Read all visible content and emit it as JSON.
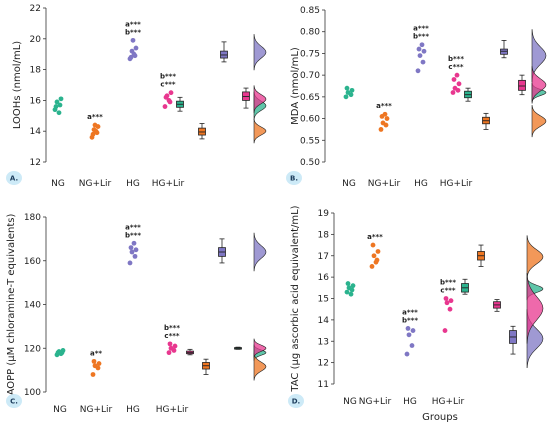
{
  "colors": {
    "NG": "#2bb38e",
    "NGLir": "#ee7622",
    "HG": "#7f77c4",
    "HGLir": "#e8378f",
    "badge": "#cdeaf7",
    "axis": "#333333"
  },
  "footer_label": "Groups",
  "chart_data": [
    {
      "id": "A",
      "panel_label": "A.",
      "type": "scatter",
      "ylabel": "LOOHs (nmol/mL)",
      "ylim": [
        12,
        22
      ],
      "yticks": [
        "12",
        "14",
        "16",
        "18",
        "20",
        "22"
      ],
      "categories": [
        "NG",
        "NG+Lir",
        "HG",
        "HG+Lir"
      ],
      "points": [
        [
          15.4,
          15.7,
          15.9,
          16.1,
          15.6,
          15.2
        ],
        [
          13.6,
          13.9,
          14.1,
          14.3,
          13.8,
          14.0,
          14.4
        ],
        [
          18.7,
          18.9,
          19.2,
          19.4,
          18.8,
          19.0,
          19.9
        ],
        [
          15.6,
          15.9,
          16.3,
          16.5,
          16.2,
          16.0
        ]
      ],
      "annotations": [
        {
          "category": "NG+Lir",
          "lines": [
            "a***"
          ]
        },
        {
          "category": "HG",
          "lines": [
            "a***",
            "b***"
          ]
        },
        {
          "category": "HG+Lir",
          "lines": [
            "b***",
            "c***"
          ]
        }
      ],
      "box_order": [
        "NG",
        "NGLir",
        "HG",
        "HGLir"
      ],
      "boxes": [
        {
          "group": "NG",
          "min": 15.3,
          "q1": 15.55,
          "median": 15.75,
          "q3": 15.95,
          "max": 16.2
        },
        {
          "group": "NGLir",
          "min": 13.5,
          "q1": 13.75,
          "median": 13.95,
          "q3": 14.2,
          "max": 14.5
        },
        {
          "group": "HG",
          "min": 18.5,
          "q1": 18.75,
          "median": 18.95,
          "q3": 19.2,
          "max": 19.8
        },
        {
          "group": "HGLir",
          "min": 15.5,
          "q1": 16.0,
          "median": 16.25,
          "q3": 16.55,
          "max": 16.8
        }
      ]
    },
    {
      "id": "B",
      "panel_label": "B.",
      "type": "scatter",
      "ylabel": "MDA (nmol/mL)",
      "ylim": [
        0.5,
        0.85
      ],
      "yticks": [
        "0.50",
        "0.55",
        "0.60",
        "0.65",
        "0.70",
        "0.75",
        "0.80",
        "0.85"
      ],
      "categories": [
        "NG",
        "NG+Lir",
        "HG",
        "HG+Lir"
      ],
      "points": [
        [
          0.65,
          0.655,
          0.66,
          0.665,
          0.67
        ],
        [
          0.575,
          0.585,
          0.59,
          0.6,
          0.605,
          0.61
        ],
        [
          0.71,
          0.73,
          0.745,
          0.755,
          0.76,
          0.77
        ],
        [
          0.66,
          0.665,
          0.67,
          0.68,
          0.69,
          0.7
        ]
      ],
      "annotations": [
        {
          "category": "NG+Lir",
          "lines": [
            "a***"
          ]
        },
        {
          "category": "HG",
          "lines": [
            "a***",
            "b***"
          ]
        },
        {
          "category": "HG+Lir",
          "lines": [
            "b***",
            "c***"
          ]
        }
      ],
      "box_order": [
        "NG",
        "NGLir",
        "HG",
        "HGLir"
      ],
      "boxes": [
        {
          "group": "NG",
          "min": 0.64,
          "q1": 0.648,
          "median": 0.655,
          "q3": 0.663,
          "max": 0.67
        },
        {
          "group": "NGLir",
          "min": 0.575,
          "q1": 0.588,
          "median": 0.595,
          "q3": 0.603,
          "max": 0.612
        },
        {
          "group": "HG",
          "min": 0.74,
          "q1": 0.748,
          "median": 0.755,
          "q3": 0.76,
          "max": 0.78
        },
        {
          "group": "HGLir",
          "min": 0.655,
          "q1": 0.665,
          "median": 0.675,
          "q3": 0.688,
          "max": 0.7
        }
      ]
    },
    {
      "id": "C",
      "panel_label": "C.",
      "type": "scatter",
      "ylabel": "AOPP (μM chloramine-T equivalents)",
      "ylim": [
        100,
        180
      ],
      "yticks": [
        "100",
        "120",
        "140",
        "160",
        "180"
      ],
      "categories": [
        "NG",
        "NG+Lir",
        "HG",
        "HG+Lir"
      ],
      "points": [
        [
          117,
          118,
          118.5,
          119,
          118,
          117.5
        ],
        [
          108,
          111,
          112,
          113,
          114
        ],
        [
          159,
          162,
          164,
          165,
          166,
          168
        ],
        [
          118,
          119,
          120,
          121,
          122
        ]
      ],
      "annotations": [
        {
          "category": "NG+Lir",
          "lines": [
            "a**"
          ]
        },
        {
          "category": "HG",
          "lines": [
            "a***",
            "b***"
          ]
        },
        {
          "category": "HG+Lir",
          "lines": [
            "b***",
            "c***"
          ]
        }
      ],
      "box_order": [
        "HGLir",
        "NGLir",
        "HG",
        "NG"
      ],
      "boxes": [
        {
          "group": "HGLir",
          "min": 117,
          "q1": 117.5,
          "median": 118,
          "q3": 118.7,
          "max": 119.5
        },
        {
          "group": "NGLir",
          "min": 108,
          "q1": 110.5,
          "median": 112,
          "q3": 113.5,
          "max": 115
        },
        {
          "group": "HG",
          "min": 159,
          "q1": 162,
          "median": 164,
          "q3": 166,
          "max": 170
        },
        {
          "group": "NG",
          "min": 119.5,
          "q1": 119.8,
          "median": 120,
          "q3": 120.3,
          "max": 120.5
        }
      ]
    },
    {
      "id": "D",
      "panel_label": "D.",
      "type": "scatter",
      "ylabel": "TAC (μg ascorbic acid equivalent/mL)",
      "ylim": [
        11,
        19
      ],
      "yticks": [
        "11",
        "12",
        "13",
        "14",
        "15",
        "16",
        "17",
        "18",
        "19"
      ],
      "categories": [
        "NG",
        "NG+Lir",
        "HG",
        "HG+Lir"
      ],
      "points": [
        [
          15.3,
          15.4,
          15.5,
          15.6,
          15.7,
          15.2
        ],
        [
          16.5,
          16.8,
          17.0,
          17.2,
          17.5,
          16.7
        ],
        [
          12.4,
          12.8,
          13.3,
          13.5,
          13.6
        ],
        [
          13.5,
          14.5,
          14.8,
          14.9,
          15.0
        ]
      ],
      "annotations": [
        {
          "category": "NG+Lir",
          "lines": [
            "a***"
          ]
        },
        {
          "category": "HG",
          "lines": [
            "a***",
            "b***"
          ]
        },
        {
          "category": "HG+Lir",
          "lines": [
            "b***",
            "c***"
          ]
        }
      ],
      "box_order": [
        "NG",
        "NGLir",
        "HGLir",
        "HG"
      ],
      "boxes": [
        {
          "group": "NG",
          "min": 15.2,
          "q1": 15.3,
          "median": 15.5,
          "q3": 15.7,
          "max": 15.9
        },
        {
          "group": "NGLir",
          "min": 16.5,
          "q1": 16.8,
          "median": 17.0,
          "q3": 17.2,
          "max": 17.5
        },
        {
          "group": "HGLir",
          "min": 14.4,
          "q1": 14.55,
          "median": 14.7,
          "q3": 14.85,
          "max": 14.95
        },
        {
          "group": "HG",
          "min": 12.4,
          "q1": 12.9,
          "median": 13.2,
          "q3": 13.5,
          "max": 13.7
        }
      ]
    }
  ]
}
